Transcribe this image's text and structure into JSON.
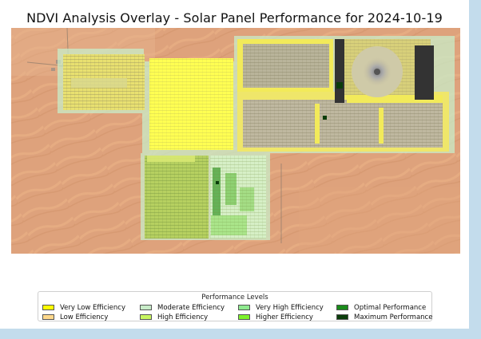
{
  "map": {
    "title": "NDVI Analysis Overlay - Solar Panel Performance for 2024-10-19",
    "basemap": "satellite desert imagery"
  },
  "legend": {
    "title": "Performance Levels",
    "items": [
      {
        "label": "Very Low Efficiency",
        "color": "#ffff00"
      },
      {
        "label": "Low Efficiency",
        "color": "#ffd98c"
      },
      {
        "label": "Moderate Efficiency",
        "color": "#c8ecc8"
      },
      {
        "label": "High Efficiency",
        "color": "#c8f560"
      },
      {
        "label": "Very High Efficiency",
        "color": "#8fea8f"
      },
      {
        "label": "Higher Efficiency",
        "color": "#7df22a"
      },
      {
        "label": "Optimal Performance",
        "color": "#1a8c1a"
      },
      {
        "label": "Maximum Performance",
        "color": "#0b3d0b"
      }
    ]
  }
}
